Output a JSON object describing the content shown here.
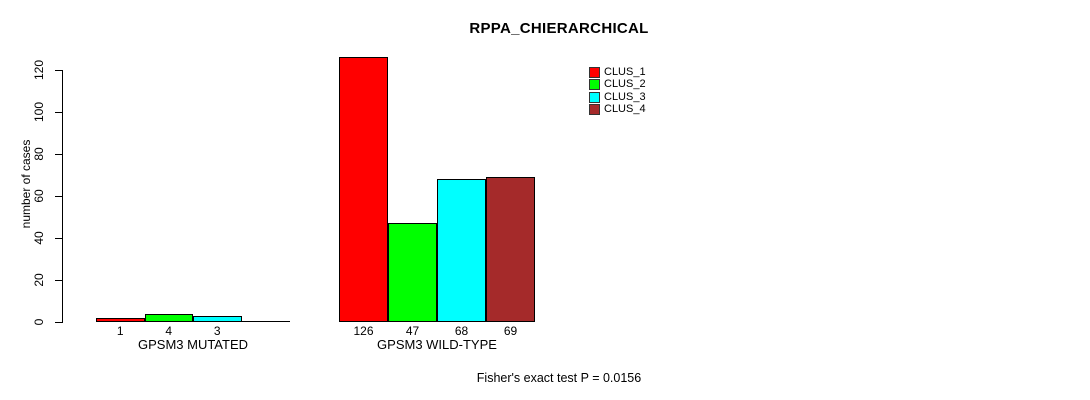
{
  "chart_data": {
    "type": "bar",
    "title": "RPPA_CHIERARCHICAL",
    "ylabel": "number of cases",
    "xlabel": "",
    "ylim": [
      0,
      120
    ],
    "yticks": [
      0,
      20,
      40,
      60,
      80,
      100,
      120
    ],
    "grid": false,
    "legend_position": "top-right",
    "categories": [
      "GPSM3 MUTATED",
      "GPSM3 WILD-TYPE"
    ],
    "series": [
      {
        "name": "CLUS_1",
        "color": "#FF0000",
        "values": [
          1,
          126
        ]
      },
      {
        "name": "CLUS_2",
        "color": "#00FF00",
        "values": [
          4,
          47
        ]
      },
      {
        "name": "CLUS_3",
        "color": "#00FFFF",
        "values": [
          3,
          68
        ]
      },
      {
        "name": "CLUS_4",
        "color": "#A52A2A",
        "values": [
          0,
          69
        ]
      }
    ],
    "annotation": "Fisher's exact test P = 0.0156"
  }
}
